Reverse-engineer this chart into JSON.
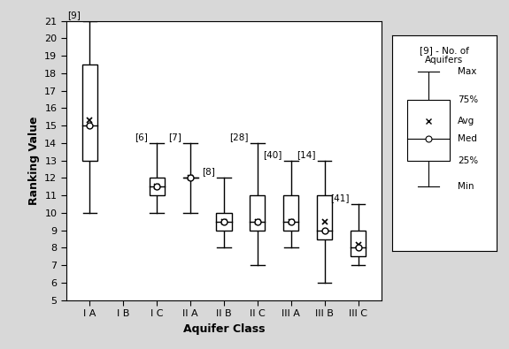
{
  "categories": [
    "I A",
    "I B",
    "I C",
    "II A",
    "II B",
    "II C",
    "III A",
    "III B",
    "III C"
  ],
  "counts": [
    "[9]",
    "",
    "[6]",
    "[7]",
    "[8]",
    "[28]",
    "[40]",
    "[14]",
    "[41]"
  ],
  "boxes": [
    {
      "min": 10.0,
      "q1": 13.0,
      "med": 15.0,
      "avg": 15.3,
      "q3": 18.5,
      "max": 21.0
    },
    {
      "min": null,
      "q1": null,
      "med": null,
      "avg": null,
      "q3": null,
      "max": null
    },
    {
      "min": 10.0,
      "q1": 11.0,
      "med": 11.5,
      "avg": 11.5,
      "q3": 12.0,
      "max": 14.0
    },
    {
      "min": 10.0,
      "q1": 12.0,
      "med": 12.0,
      "avg": 12.0,
      "q3": 12.0,
      "max": 14.0
    },
    {
      "min": 8.0,
      "q1": 9.0,
      "med": 9.5,
      "avg": 9.5,
      "q3": 10.0,
      "max": 12.0
    },
    {
      "min": 7.0,
      "q1": 9.0,
      "med": 9.5,
      "avg": 9.5,
      "q3": 11.0,
      "max": 14.0
    },
    {
      "min": 8.0,
      "q1": 9.0,
      "med": 9.5,
      "avg": 9.5,
      "q3": 11.0,
      "max": 13.0
    },
    {
      "min": 6.0,
      "q1": 8.5,
      "med": 9.0,
      "avg": 9.5,
      "q3": 11.0,
      "max": 13.0
    },
    {
      "min": 7.0,
      "q1": 7.5,
      "med": 8.0,
      "avg": 8.2,
      "q3": 9.0,
      "max": 10.5
    }
  ],
  "ylabel": "Ranking Value",
  "xlabel": "Aquifer Class",
  "ylim": [
    5,
    21
  ],
  "yticks": [
    5,
    6,
    7,
    8,
    9,
    10,
    11,
    12,
    13,
    14,
    15,
    16,
    17,
    18,
    19,
    20,
    21
  ],
  "box_color": "white",
  "box_edgecolor": "black",
  "whisker_color": "black",
  "median_color": "black",
  "legend_title": "[9] - No. of\nAquifers",
  "legend_items": [
    "Max",
    "75%",
    "Avg",
    "Med",
    "25%",
    "Min"
  ],
  "figure_bg": "#d8d8d8",
  "axes_bg": "white",
  "box_width": 0.45
}
